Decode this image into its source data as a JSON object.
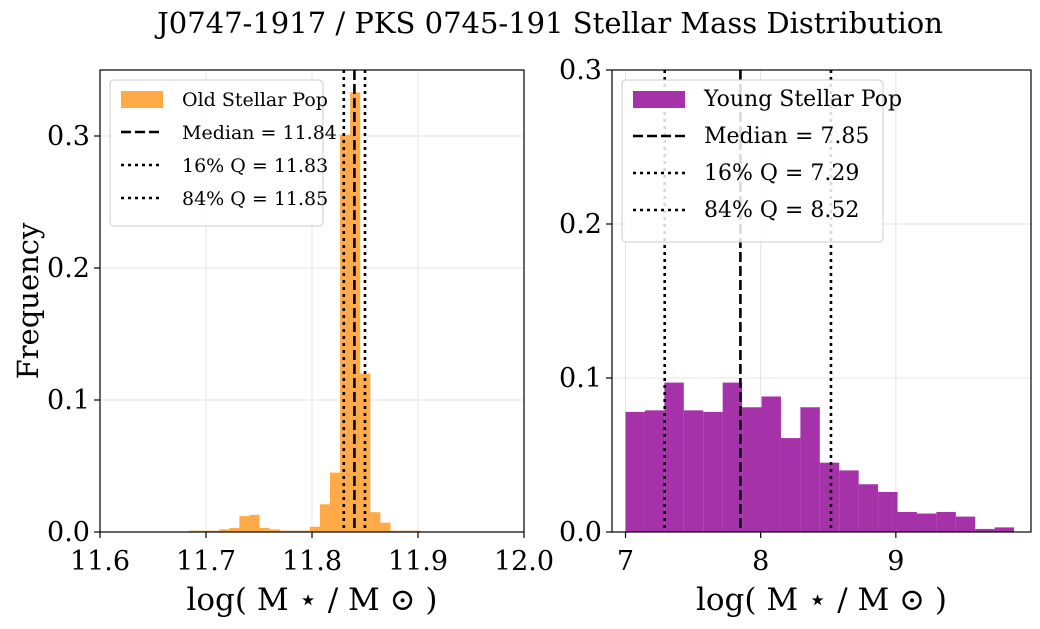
{
  "title": "J0747-1917 / PKS 0745-191 Stellar Mass Distribution",
  "chart_data": [
    {
      "type": "bar",
      "subtype": "histogram",
      "xlabel": "log( M ⋆ / M ⊙ )",
      "ylabel": "Frequency",
      "xlim": [
        11.6,
        12.0
      ],
      "ylim": [
        0.0,
        0.35
      ],
      "xticks": [
        11.6,
        11.7,
        11.8,
        11.9,
        12.0
      ],
      "xtick_labels": [
        "11.6",
        "11.7",
        "11.8",
        "11.9",
        "12.0"
      ],
      "yticks": [
        0.0,
        0.1,
        0.2,
        0.3
      ],
      "ytick_labels": [
        "0.0",
        "0.1",
        "0.2",
        "0.3"
      ],
      "grid": true,
      "legend_position": "top-left",
      "color": "#ffa033",
      "series": [
        {
          "name": "Old Stellar Pop",
          "bin_width": 0.00952,
          "bin_start": [
            11.684,
            11.6935,
            11.703,
            11.7125,
            11.722,
            11.7315,
            11.741,
            11.7505,
            11.76,
            11.7695,
            11.779,
            11.7885,
            11.798,
            11.8075,
            11.817,
            11.8265,
            11.836,
            11.8455,
            11.855,
            11.8645,
            11.874,
            11.8835,
            11.893
          ],
          "values": [
            0.001,
            0.001,
            0.001,
            0.002,
            0.003,
            0.012,
            0.013,
            0.003,
            0.002,
            0.001,
            0.001,
            0.001,
            0.004,
            0.021,
            0.045,
            0.301,
            0.333,
            0.12,
            0.015,
            0.007,
            0.001,
            0.001,
            0.001
          ]
        }
      ],
      "lines": [
        {
          "label": "Median = 11.84",
          "x": 11.84,
          "style": "dashed"
        },
        {
          "label": "16% Q = 11.83",
          "x": 11.83,
          "style": "dotted"
        },
        {
          "label": "84% Q = 11.85",
          "x": 11.85,
          "style": "dotted"
        }
      ]
    },
    {
      "type": "bar",
      "subtype": "histogram",
      "xlabel": "log( M ⋆ / M ⊙ )",
      "ylabel": "",
      "xlim": [
        6.9,
        10.0
      ],
      "ylim": [
        0.0,
        0.3
      ],
      "xticks": [
        7,
        8,
        9
      ],
      "xtick_labels": [
        "7",
        "8",
        "9"
      ],
      "yticks": [
        0.0,
        0.1,
        0.2,
        0.3
      ],
      "ytick_labels": [
        "0.0",
        "0.1",
        "0.2",
        "0.3"
      ],
      "grid": true,
      "legend_position": "top-left",
      "color": "#9b1c9e",
      "series": [
        {
          "name": "Young Stellar Pop",
          "bin_width": 0.14375,
          "bin_start": [
            7.0,
            7.14375,
            7.2875,
            7.43125,
            7.575,
            7.71875,
            7.8625,
            8.00625,
            8.15,
            8.29375,
            8.4375,
            8.58125,
            8.725,
            8.86875,
            9.0125,
            9.15625,
            9.3,
            9.44375,
            9.5875,
            9.73125
          ],
          "values": [
            0.078,
            0.079,
            0.097,
            0.079,
            0.078,
            0.097,
            0.081,
            0.088,
            0.061,
            0.081,
            0.045,
            0.04,
            0.031,
            0.026,
            0.013,
            0.012,
            0.013,
            0.01,
            0.002,
            0.003
          ]
        }
      ],
      "lines": [
        {
          "label": "Median = 7.85",
          "x": 7.85,
          "style": "dashed"
        },
        {
          "label": "16% Q = 7.29",
          "x": 7.29,
          "style": "dotted"
        },
        {
          "label": "84% Q = 8.52",
          "x": 8.52,
          "style": "dotted"
        }
      ]
    }
  ]
}
